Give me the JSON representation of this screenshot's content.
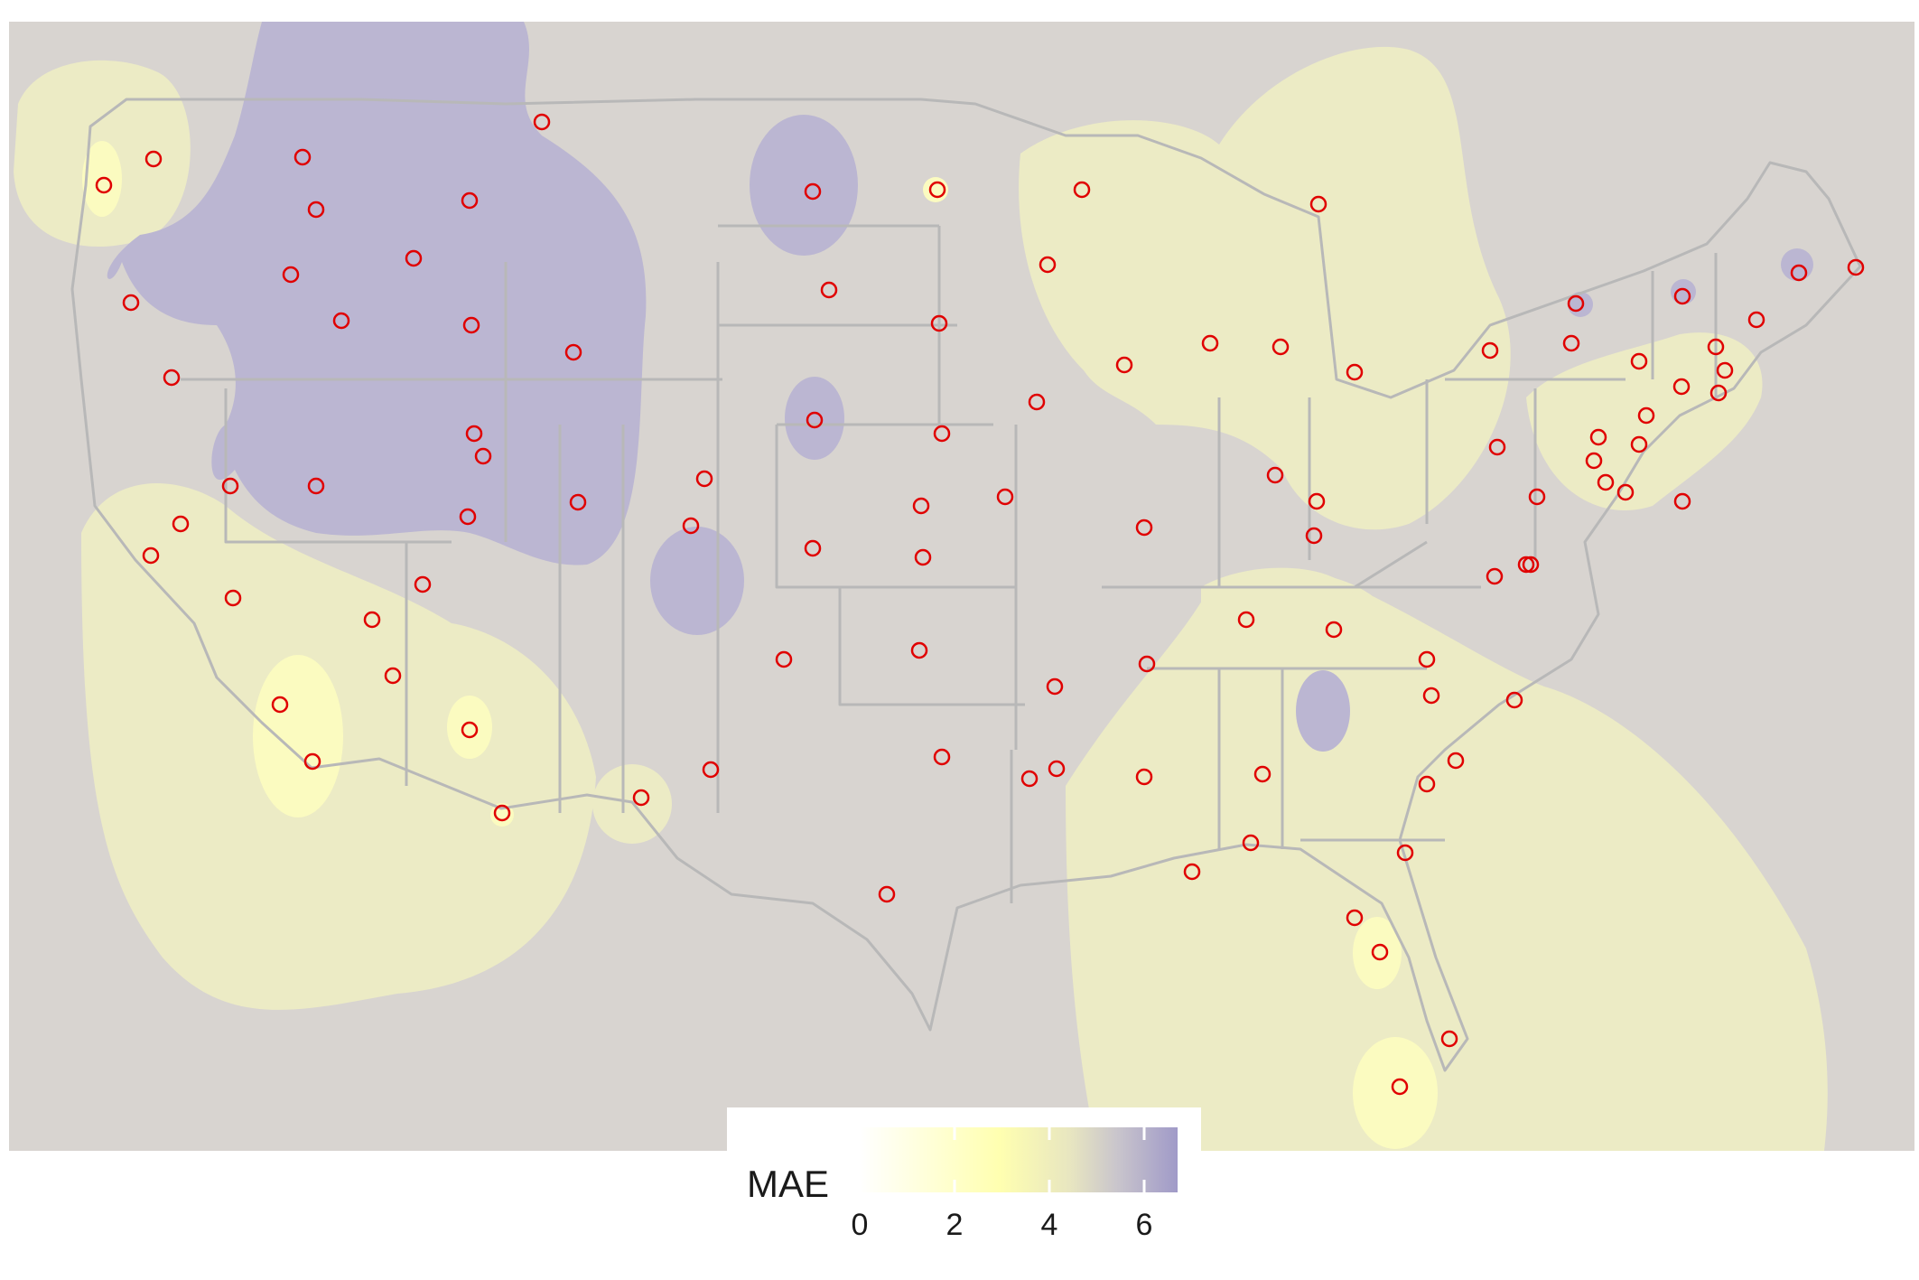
{
  "map": {
    "background_color": "#d8d4d0",
    "border_color": "#b8b8b8",
    "marker_color": "#e00000",
    "high_region_color": "#bbb6d2",
    "low_region_color": "#ecebc5",
    "bright_region_color": "#fbfbc0"
  },
  "legend": {
    "title": "MAE",
    "ticks": [
      "0",
      "2",
      "4",
      "6"
    ],
    "range": [
      0,
      6.8
    ],
    "gradient_stops": [
      {
        "value": 0,
        "color": "#ffffff"
      },
      {
        "value": 3,
        "color": "#ffffb0"
      },
      {
        "value": 4.5,
        "color": "#e8e6c0"
      },
      {
        "value": 5.5,
        "color": "#c9c5cc"
      },
      {
        "value": 6.8,
        "color": "#a09ac8"
      }
    ]
  }
}
